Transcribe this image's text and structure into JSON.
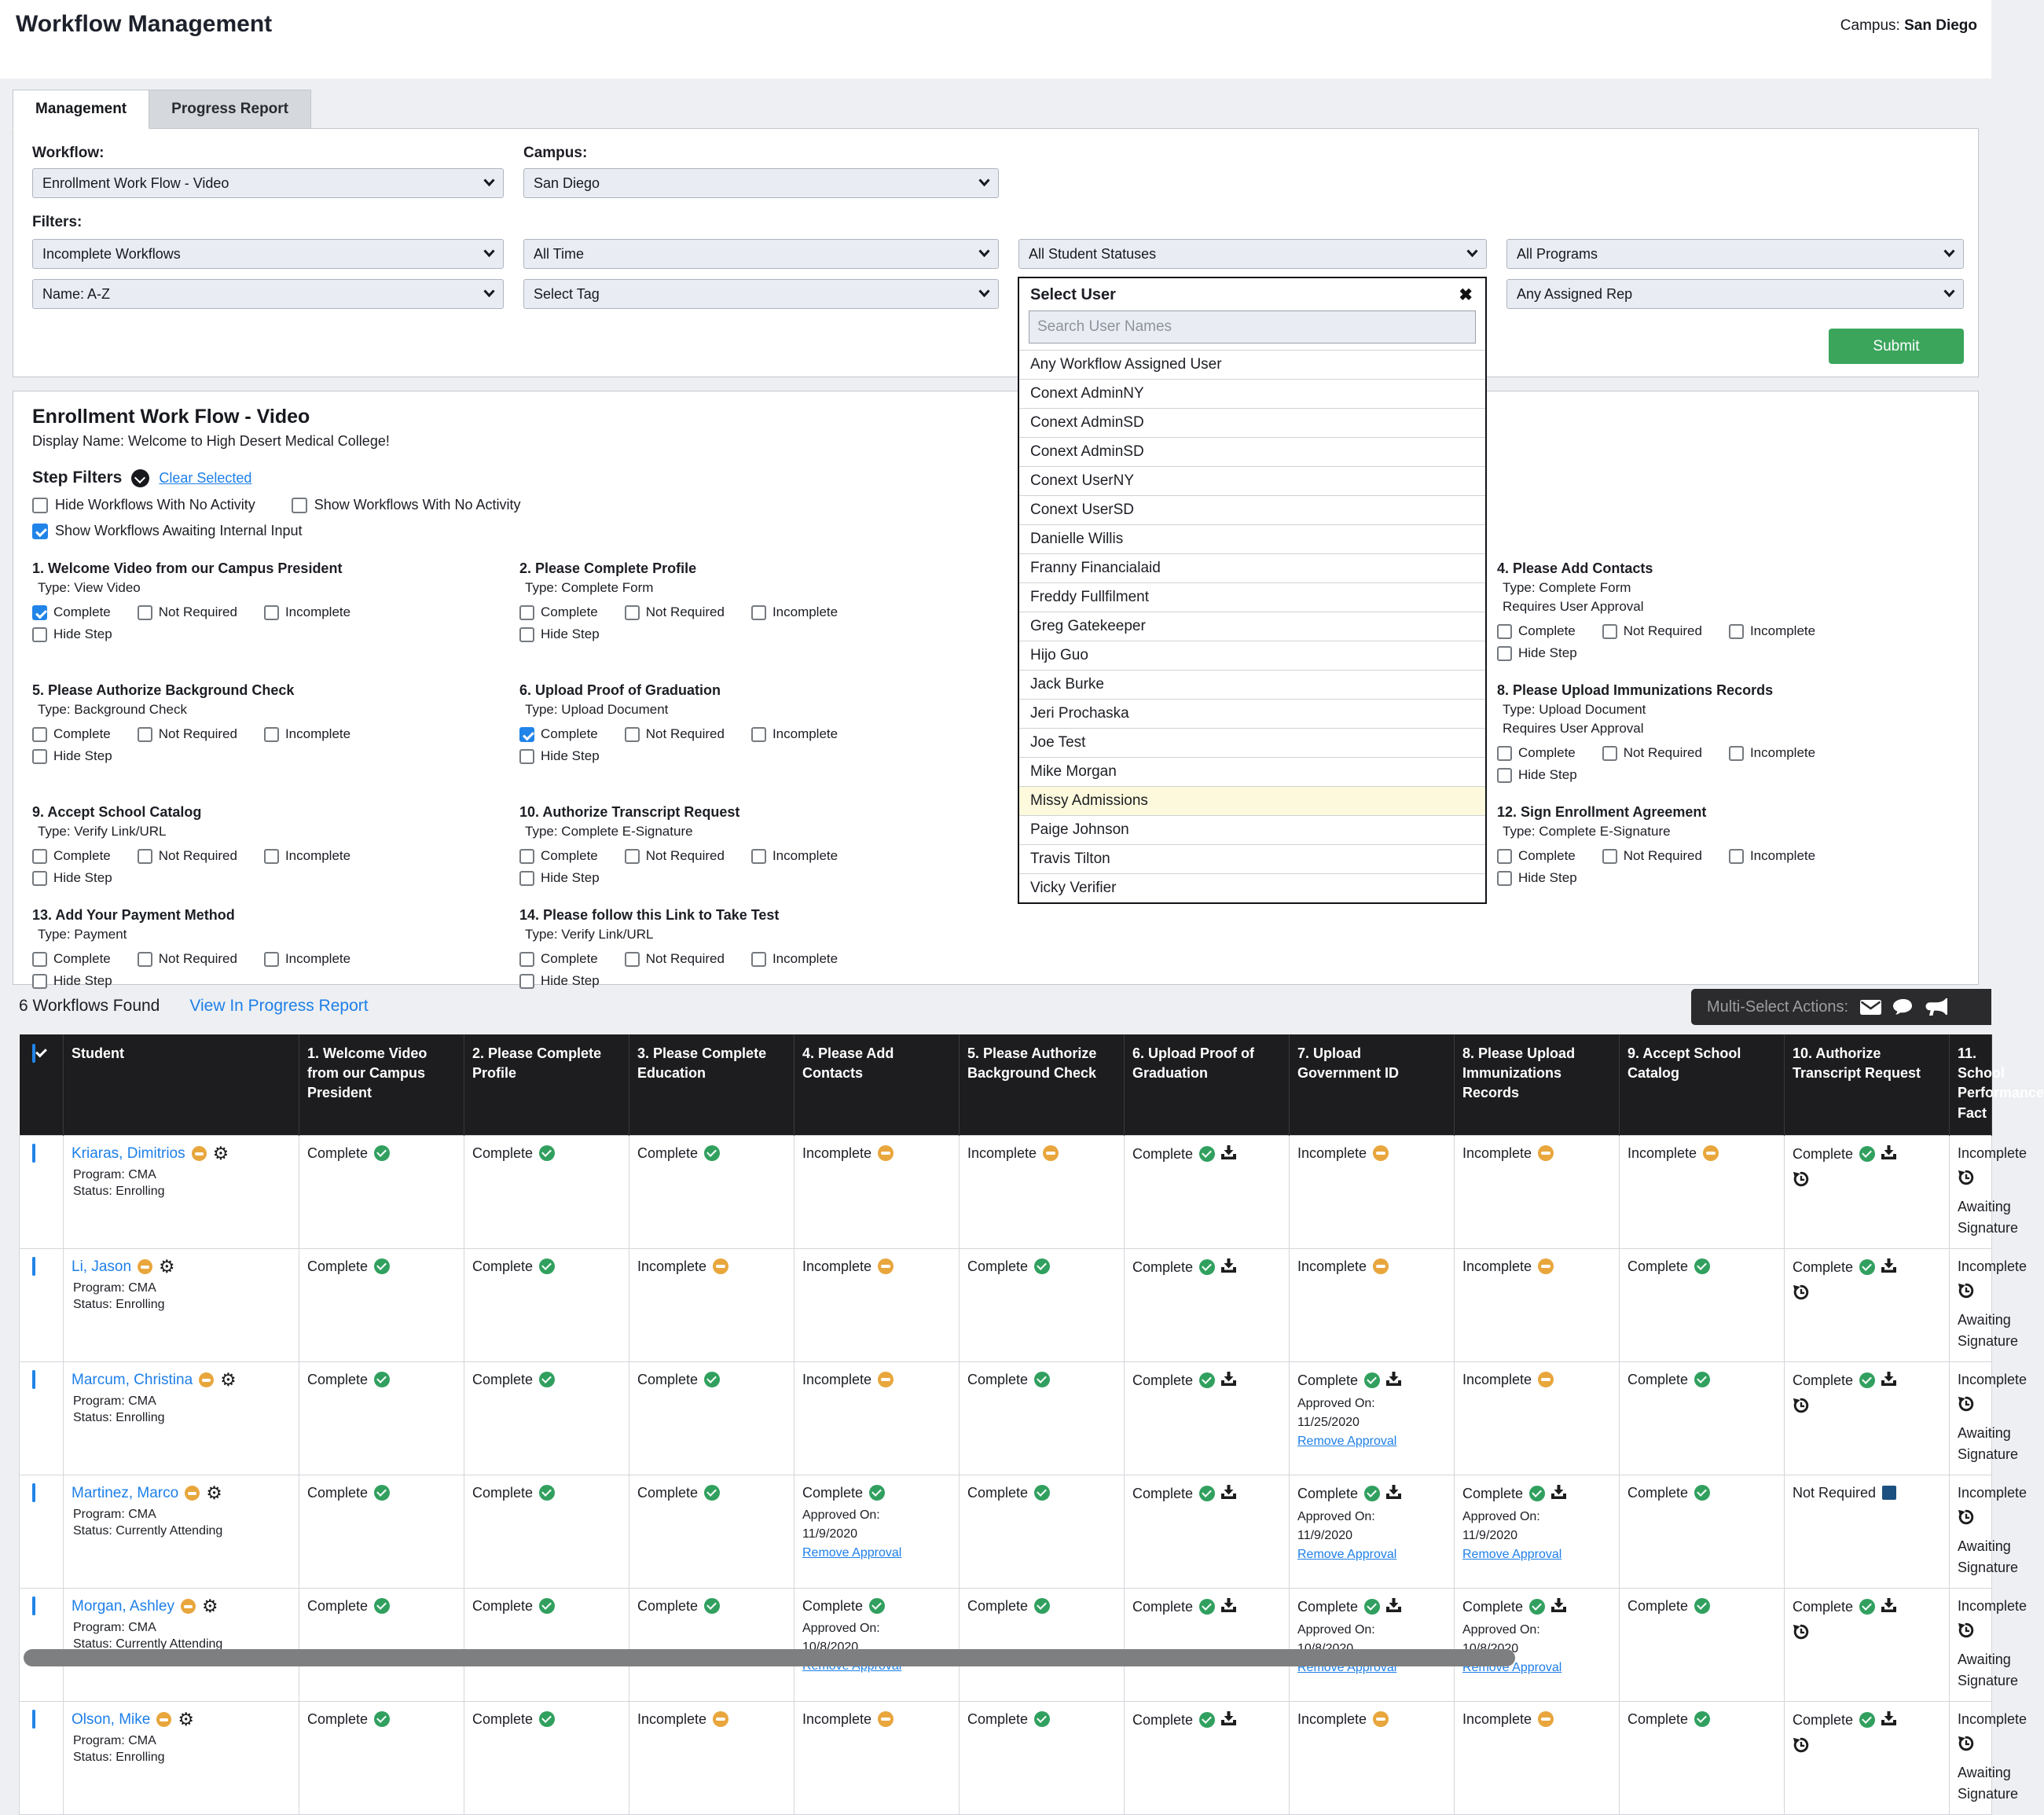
{
  "page": {
    "title": "Workflow Management",
    "campus_label": "Campus:",
    "campus_value": "San Diego"
  },
  "tabs": [
    {
      "label": "Management",
      "active": true
    },
    {
      "label": "Progress Report",
      "active": false
    }
  ],
  "filter_panel": {
    "workflow_label": "Workflow:",
    "workflow_value": "Enrollment Work Flow - Video",
    "campus_label": "Campus:",
    "campus_value": "San Diego",
    "filters_label": "Filters:",
    "selects_row1": [
      "Incomplete Workflows",
      "All Time",
      "All Student Statuses",
      "All Programs"
    ],
    "selects_row2": [
      "Name: A-Z",
      "Select Tag",
      "Any Assigned Rep"
    ],
    "submit_label": "Submit"
  },
  "user_dropdown": {
    "title": "Select User",
    "search_placeholder": "Search User Names",
    "highlighted": "Missy Admissions",
    "items": [
      "Any Workflow Assigned User",
      "Conext AdminNY",
      "Conext AdminSD",
      "Conext AdminSD",
      "Conext UserNY",
      "Conext UserSD",
      "Danielle Willis",
      "Franny Financialaid",
      "Freddy Fullfilment",
      "Greg Gatekeeper",
      "Hijo Guo",
      "Jack Burke",
      "Jeri Prochaska",
      "Joe Test",
      "Mike Morgan",
      "Missy Admissions",
      "Paige Johnson",
      "Travis Tilton",
      "Vicky Verifier"
    ]
  },
  "workflow_section": {
    "title": "Enrollment Work Flow - Video",
    "display_name": "Display Name: Welcome to High Desert Medical College!",
    "step_filters_label": "Step Filters",
    "clear_selected_label": "Clear Selected",
    "toggles": [
      {
        "label": "Hide Workflows With No Activity",
        "checked": false,
        "line": 0
      },
      {
        "label": "Show Workflows With No Activity",
        "checked": false,
        "line": 0
      },
      {
        "label": "Show Workflows Awaiting Internal Input",
        "checked": true,
        "line": 1
      }
    ],
    "checkbox_options": [
      "Complete",
      "Not Required",
      "Incomplete"
    ],
    "hide_step_label": "Hide Step",
    "steps": [
      {
        "row": 0,
        "col": 0,
        "title": "1. Welcome Video from our Campus President",
        "type": "Type: View Video",
        "checked": "Complete"
      },
      {
        "row": 0,
        "col": 1,
        "title": "2. Please Complete Profile",
        "type": "Type: Complete Form"
      },
      {
        "row": 0,
        "col": 3,
        "title": "4. Please Add Contacts",
        "type": "Type: Complete Form",
        "requires": "Requires User Approval"
      },
      {
        "row": 1,
        "col": 0,
        "title": "5. Please Authorize Background Check",
        "type": "Type: Background Check"
      },
      {
        "row": 1,
        "col": 1,
        "title": "6. Upload Proof of Graduation",
        "type": "Type: Upload Document",
        "checked": "Complete"
      },
      {
        "row": 1,
        "col": 3,
        "title": "8. Please Upload Immunizations Records",
        "type": "Type: Upload Document",
        "requires": "Requires User Approval"
      },
      {
        "row": 2,
        "col": 0,
        "title": "9. Accept School Catalog",
        "type": "Type: Verify Link/URL"
      },
      {
        "row": 2,
        "col": 1,
        "title": "10. Authorize Transcript Request",
        "type": "Type: Complete E-Signature"
      },
      {
        "row": 2,
        "col": 3,
        "title": "12. Sign Enrollment Agreement",
        "type": "Type: Complete E-Signature"
      },
      {
        "row": 3,
        "col": 0,
        "title": "13. Add Your Payment Method",
        "type": "Type: Payment"
      },
      {
        "row": 3,
        "col": 1,
        "title": "14. Please follow this Link to Take Test",
        "type": "Type: Verify Link/URL"
      }
    ]
  },
  "results": {
    "count_text": "6 Workflows Found",
    "report_link": "View In Progress Report",
    "multi_select_label": "Multi-Select Actions:"
  },
  "table": {
    "columns": [
      "Student",
      "1. Welcome Video from our Campus President",
      "2. Please Complete Profile",
      "3. Please Complete Education",
      "4. Please Add Contacts",
      "5. Please Authorize Background Check",
      "6. Upload Proof of Graduation",
      "7. Upload Government ID",
      "8. Please Upload Immunizations Records",
      "9. Accept School Catalog",
      "10. Authorize Transcript Request",
      "11. School Performance Fact"
    ],
    "status_labels": {
      "complete": "Complete",
      "incomplete": "Incomplete",
      "not_required": "Not Required"
    },
    "approved_on_label": "Approved On:",
    "remove_approval_label": "Remove Approval",
    "awaiting_label": "Awaiting Signature",
    "rows": [
      {
        "name": "Kriaras, Dimitrios",
        "program": "Program: CMA",
        "status": "Status: Enrolling",
        "cells": [
          {
            "s": "complete"
          },
          {
            "s": "complete"
          },
          {
            "s": "complete"
          },
          {
            "s": "incomplete"
          },
          {
            "s": "incomplete"
          },
          {
            "s": "complete",
            "dl": true
          },
          {
            "s": "incomplete"
          },
          {
            "s": "incomplete"
          },
          {
            "s": "incomplete"
          },
          {
            "s": "complete",
            "dl": true,
            "h": true
          },
          {
            "s": "incomplete",
            "clip": true
          }
        ]
      },
      {
        "name": "Li, Jason",
        "program": "Program: CMA",
        "status": "Status: Enrolling",
        "cells": [
          {
            "s": "complete"
          },
          {
            "s": "complete"
          },
          {
            "s": "incomplete"
          },
          {
            "s": "incomplete"
          },
          {
            "s": "complete"
          },
          {
            "s": "complete",
            "dl": true
          },
          {
            "s": "incomplete"
          },
          {
            "s": "incomplete"
          },
          {
            "s": "complete"
          },
          {
            "s": "complete",
            "dl": true,
            "h": true
          },
          {
            "s": "incomplete",
            "clip": true
          }
        ]
      },
      {
        "name": "Marcum, Christina",
        "program": "Program: CMA",
        "status": "Status: Enrolling",
        "cells": [
          {
            "s": "complete"
          },
          {
            "s": "complete"
          },
          {
            "s": "complete"
          },
          {
            "s": "incomplete"
          },
          {
            "s": "complete"
          },
          {
            "s": "complete",
            "dl": true
          },
          {
            "s": "complete",
            "dl": true,
            "ap": "11/25/2020"
          },
          {
            "s": "incomplete"
          },
          {
            "s": "complete"
          },
          {
            "s": "complete",
            "dl": true,
            "h": true
          },
          {
            "s": "incomplete",
            "clip": true
          }
        ]
      },
      {
        "name": "Martinez, Marco",
        "program": "Program: CMA",
        "status": "Status: Currently Attending",
        "cells": [
          {
            "s": "complete"
          },
          {
            "s": "complete"
          },
          {
            "s": "complete"
          },
          {
            "s": "complete",
            "ap": "11/9/2020"
          },
          {
            "s": "complete"
          },
          {
            "s": "complete",
            "dl": true
          },
          {
            "s": "complete",
            "dl": true,
            "ap": "11/9/2020"
          },
          {
            "s": "complete",
            "dl": true,
            "ap": "11/9/2020"
          },
          {
            "s": "complete"
          },
          {
            "s": "not_required",
            "nr": true
          },
          {
            "s": "incomplete",
            "clip": true
          }
        ]
      },
      {
        "name": "Morgan, Ashley",
        "program": "Program: CMA",
        "status": "Status: Currently Attending",
        "cells": [
          {
            "s": "complete"
          },
          {
            "s": "complete"
          },
          {
            "s": "complete"
          },
          {
            "s": "complete",
            "ap": "10/8/2020"
          },
          {
            "s": "complete"
          },
          {
            "s": "complete",
            "dl": true
          },
          {
            "s": "complete",
            "dl": true,
            "ap": "10/8/2020"
          },
          {
            "s": "complete",
            "dl": true,
            "ap": "10/8/2020"
          },
          {
            "s": "complete"
          },
          {
            "s": "complete",
            "dl": true,
            "h": true
          },
          {
            "s": "incomplete",
            "clip": true
          }
        ]
      },
      {
        "name": "Olson, Mike",
        "program": "Program: CMA",
        "status": "Status: Enrolling",
        "cells": [
          {
            "s": "complete"
          },
          {
            "s": "complete"
          },
          {
            "s": "incomplete"
          },
          {
            "s": "incomplete"
          },
          {
            "s": "complete"
          },
          {
            "s": "complete",
            "dl": true
          },
          {
            "s": "incomplete"
          },
          {
            "s": "incomplete"
          },
          {
            "s": "complete"
          },
          {
            "s": "complete",
            "dl": true,
            "h": true
          },
          {
            "s": "incomplete",
            "clip": true
          }
        ]
      }
    ]
  },
  "colors": {
    "link_blue": "#1d7fe8",
    "submit_green": "#3ba55c",
    "complete_green": "#31a05f",
    "incomplete_orange": "#e8a63c",
    "not_required_navy": "#1b5080",
    "header_dark": "#1d1d1f",
    "highlight_yellow": "#fcf9dc",
    "checkbox_blue": "#2184e8"
  }
}
